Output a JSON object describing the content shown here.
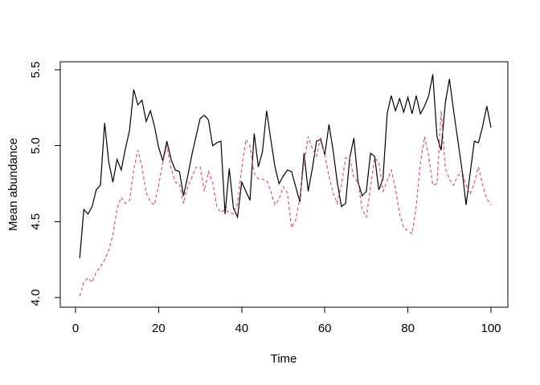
{
  "figure": {
    "background": "#ffffff",
    "frame_color": "#000000"
  },
  "chart_data": {
    "type": "line",
    "title": "",
    "xlabel": "Time",
    "ylabel": "Mean abundance",
    "x_ticks": [
      0,
      20,
      40,
      60,
      80,
      100
    ],
    "y_ticks": [
      "4.0",
      "4.5",
      "5.0",
      "5.5"
    ],
    "xlim": [
      -3.7,
      104.1
    ],
    "ylim": [
      3.97,
      5.55
    ],
    "grid": false,
    "legend": "none",
    "x": [
      1,
      2,
      3,
      4,
      5,
      6,
      7,
      8,
      9,
      10,
      11,
      12,
      13,
      14,
      15,
      16,
      17,
      18,
      19,
      20,
      21,
      22,
      23,
      24,
      25,
      26,
      27,
      28,
      29,
      30,
      31,
      32,
      33,
      34,
      35,
      36,
      37,
      38,
      39,
      40,
      41,
      42,
      43,
      44,
      45,
      46,
      47,
      48,
      49,
      50,
      51,
      52,
      53,
      54,
      55,
      56,
      57,
      58,
      59,
      60,
      61,
      62,
      63,
      64,
      65,
      66,
      67,
      68,
      69,
      70,
      71,
      72,
      73,
      74,
      75,
      76,
      77,
      78,
      79,
      80,
      81,
      82,
      83,
      84,
      85,
      86,
      87,
      88,
      89,
      90,
      91,
      92,
      93,
      94,
      95,
      96,
      97,
      98,
      99,
      100
    ],
    "series": [
      {
        "name": "series-1-black-solid",
        "color": "#000000",
        "style": "solid",
        "values": [
          4.26,
          4.58,
          4.55,
          4.6,
          4.71,
          4.74,
          5.15,
          4.89,
          4.76,
          4.91,
          4.84,
          4.98,
          5.1,
          5.37,
          5.27,
          5.3,
          5.16,
          5.23,
          5.13,
          4.99,
          4.9,
          5.03,
          4.91,
          4.84,
          4.83,
          4.67,
          4.8,
          4.94,
          5.06,
          5.18,
          5.2,
          5.17,
          5.0,
          5.02,
          5.03,
          4.55,
          4.85,
          4.59,
          4.53,
          4.76,
          4.7,
          4.64,
          5.08,
          4.86,
          4.96,
          5.23,
          5.04,
          4.86,
          4.75,
          4.8,
          4.84,
          4.83,
          4.73,
          4.63,
          4.95,
          4.7,
          4.85,
          5.03,
          5.04,
          4.94,
          5.14,
          4.97,
          4.76,
          4.6,
          4.62,
          4.92,
          5.05,
          4.76,
          4.67,
          4.7,
          4.95,
          4.93,
          4.71,
          4.78,
          5.21,
          5.33,
          5.23,
          5.31,
          5.22,
          5.32,
          5.21,
          5.33,
          5.21,
          5.26,
          5.33,
          5.47,
          5.06,
          4.97,
          5.28,
          5.44,
          5.23,
          5.04,
          4.85,
          4.61,
          4.82,
          5.03,
          5.02,
          5.13,
          5.26,
          5.12
        ]
      },
      {
        "name": "series-2-red-dashed",
        "color": "#DF536B",
        "style": "dashed",
        "values": [
          4.01,
          4.1,
          4.13,
          4.1,
          4.17,
          4.2,
          4.25,
          4.31,
          4.41,
          4.59,
          4.66,
          4.62,
          4.64,
          4.84,
          4.97,
          4.86,
          4.69,
          4.63,
          4.61,
          4.74,
          4.89,
          5.0,
          4.85,
          4.76,
          4.75,
          4.62,
          4.73,
          4.79,
          4.86,
          4.86,
          4.7,
          4.83,
          4.76,
          4.6,
          4.56,
          4.58,
          4.56,
          4.55,
          4.62,
          4.85,
          5.04,
          5.0,
          4.82,
          4.78,
          4.78,
          4.77,
          4.7,
          4.61,
          4.65,
          4.73,
          4.69,
          4.46,
          4.51,
          4.66,
          4.89,
          5.06,
          4.98,
          4.93,
          5.06,
          4.94,
          4.8,
          4.69,
          4.62,
          4.74,
          4.92,
          4.92,
          4.79,
          4.76,
          4.58,
          4.53,
          4.73,
          4.92,
          4.89,
          4.7,
          4.77,
          4.84,
          4.72,
          4.55,
          4.46,
          4.44,
          4.42,
          4.6,
          4.88,
          5.06,
          4.93,
          4.74,
          4.75,
          5.23,
          4.85,
          4.78,
          4.74,
          4.8,
          4.84,
          4.74,
          4.68,
          4.76,
          4.86,
          4.74,
          4.65,
          4.61
        ]
      }
    ]
  }
}
